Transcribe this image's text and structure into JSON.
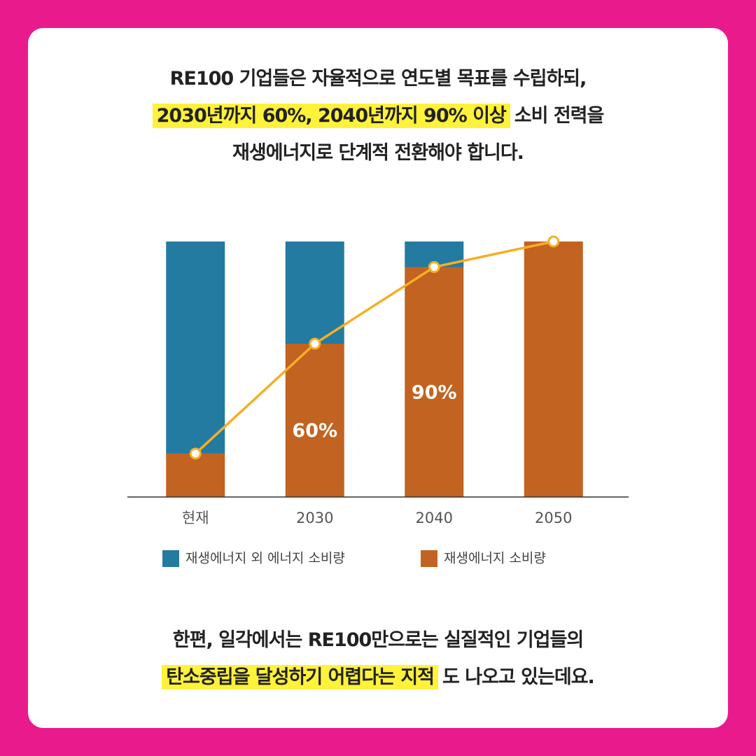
{
  "caption_top": {
    "lines": [
      [
        {
          "text": "RE100 기업들은 자율적으로 연도별 목표를 수립하되,",
          "highlight": false
        }
      ],
      [
        {
          "text": "2030년까지 60%, 2040년까지 90% 이상",
          "highlight": true
        },
        {
          "text": "소비 전력을",
          "highlight": false
        }
      ],
      [
        {
          "text": "재생에너지로 단계적 전환해야 합니다.",
          "highlight": false
        }
      ]
    ]
  },
  "chart_data": {
    "type": "bar",
    "stacked": true,
    "categories": [
      "현재",
      "2030",
      "2040",
      "2050"
    ],
    "series": [
      {
        "name": "재생에너지 외 에너지 소비량",
        "color": "#237ba1",
        "values": [
          83,
          40,
          10,
          0
        ]
      },
      {
        "name": "재생에너지 소비량",
        "color": "#c26321",
        "values": [
          17,
          60,
          90,
          100
        ],
        "value_labels": [
          null,
          "60%",
          "90%",
          null
        ]
      }
    ],
    "line_series": 1,
    "line_color": "#f7ae25",
    "ylim": [
      0,
      100
    ]
  },
  "caption_bottom": {
    "lines": [
      [
        {
          "text": "한편, 일각에서는 RE100만으로는 실질적인 기업들의",
          "highlight": false
        }
      ],
      [
        {
          "text": "탄소중립을 달성하기 어렵다는 지적",
          "highlight": true
        },
        {
          "text": "도 나오고 있는데요.",
          "highlight": false
        }
      ]
    ]
  }
}
